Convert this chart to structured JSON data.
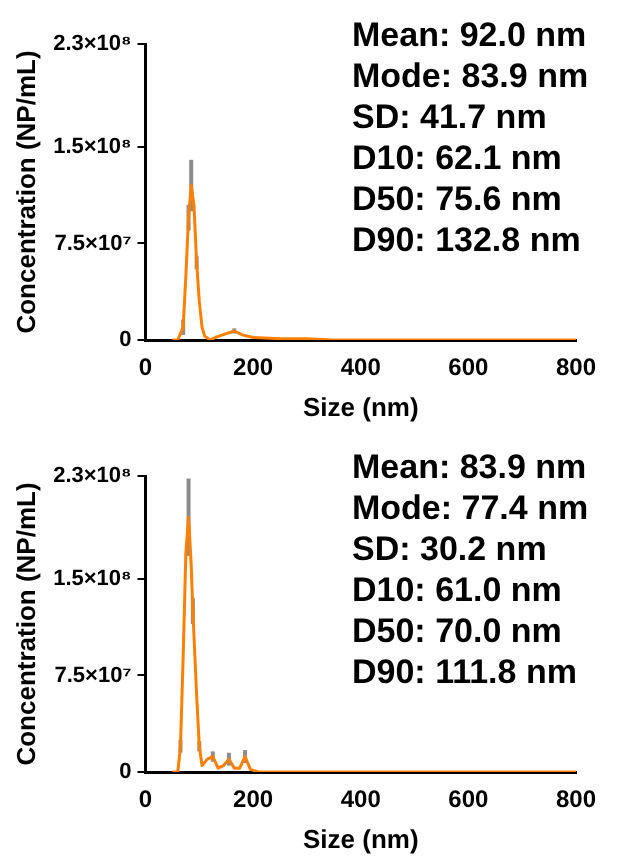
{
  "chart_data": [
    {
      "type": "line",
      "xlabel": "Size (nm)",
      "ylabel": "Concentration (NP/mL)",
      "xlim": [
        0,
        800
      ],
      "xticks": [
        0,
        200,
        400,
        600,
        800
      ],
      "ylim": [
        0,
        230000000
      ],
      "yticks": [
        0,
        {
          "value": 75000000,
          "label": "7.5×10⁷"
        },
        {
          "value": 150000000,
          "label": "1.5×10⁸"
        },
        {
          "value": 230000000,
          "label": "2.3×10⁸"
        }
      ],
      "grid": false,
      "legend": false,
      "marker": "none",
      "line_style": "solid",
      "x": [
        50,
        60,
        70,
        75,
        80,
        85,
        90,
        95,
        100,
        105,
        110,
        120,
        130,
        150,
        165,
        180,
        200,
        250,
        300,
        350,
        800
      ],
      "series": [
        {
          "color": "#ff8000",
          "values": [
            0,
            0,
            10000000.0,
            50000000.0,
            95000000.0,
            120000000.0,
            105000000.0,
            60000000.0,
            30000000.0,
            10000000.0,
            3000000.0,
            0,
            2000000.0,
            5000000.0,
            7000000.0,
            4000000.0,
            2000000.0,
            1000000.0,
            1000000.0,
            0,
            0
          ],
          "errors": [
            null,
            null,
            6000000.0,
            null,
            10000000.0,
            20000000.0,
            null,
            5000000.0,
            null,
            null,
            null,
            null,
            null,
            null,
            2000000.0,
            null,
            null,
            null,
            null,
            null,
            null
          ]
        }
      ],
      "annotations": [
        "Mean: 92.0 nm",
        "Mode: 83.9 nm",
        "SD: 41.7 nm",
        "D10: 62.1 nm",
        "D50: 75.6 nm",
        "D90: 132.8 nm"
      ]
    },
    {
      "type": "line",
      "xlabel": "Size (nm)",
      "ylabel": "Concentration (NP/mL)",
      "xlim": [
        0,
        800
      ],
      "xticks": [
        0,
        200,
        400,
        600,
        800
      ],
      "ylim": [
        0,
        230000000
      ],
      "yticks": [
        0,
        {
          "value": 75000000,
          "label": "7.5×10⁷"
        },
        {
          "value": 150000000,
          "label": "1.5×10⁸"
        },
        {
          "value": 230000000,
          "label": "2.3×10⁸"
        }
      ],
      "grid": false,
      "legend": false,
      "marker": "none",
      "line_style": "solid",
      "x": [
        50,
        60,
        65,
        70,
        75,
        80,
        85,
        88,
        95,
        100,
        105,
        115,
        125,
        135,
        145,
        155,
        165,
        175,
        185,
        195,
        210,
        800
      ],
      "series": [
        {
          "color": "#ff8000",
          "values": [
            0,
            0,
            20000000.0,
            90000000.0,
            170000000.0,
            198000000.0,
            160000000.0,
            125000000.0,
            60000000.0,
            20000000.0,
            5000000.0,
            10000000.0,
            12000000.0,
            3000000.0,
            5000000.0,
            10000000.0,
            3000000.0,
            3000000.0,
            12000000.0,
            2000000.0,
            0,
            0
          ],
          "errors": [
            null,
            null,
            5000000.0,
            null,
            null,
            30000000.0,
            null,
            10000000.0,
            null,
            4000000.0,
            null,
            null,
            4000000.0,
            null,
            null,
            5000000.0,
            null,
            null,
            5000000.0,
            null,
            null,
            null
          ]
        }
      ],
      "annotations": [
        "Mean: 83.9 nm",
        "Mode: 77.4 nm",
        "SD: 30.2 nm",
        "D10: 61.0 nm",
        "D50: 70.0 nm",
        "D90: 111.8 nm"
      ]
    }
  ]
}
